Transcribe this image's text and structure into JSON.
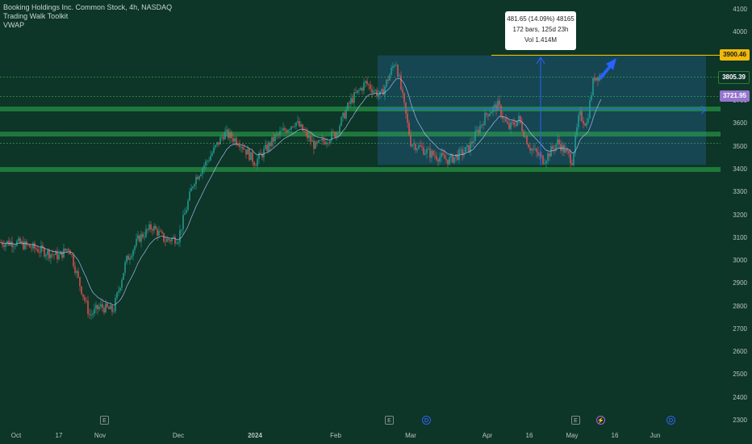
{
  "legend": {
    "symbol": "Booking Holdings Inc. Common Stock, 4h, NASDAQ",
    "indicator1": "Trading Walk Toolkit",
    "indicator2": "VWAP"
  },
  "measure_tooltip": {
    "line1": "481.65 (14.09%) 48165",
    "line2": "172 bars, 125d 23h",
    "line3": "Vol 1.414M"
  },
  "price_labels": [
    {
      "text": "3900.46",
      "price": 3900.46,
      "bg": "#f0b90b",
      "fg": "#1a1a1a"
    },
    {
      "text": "3805.39",
      "price": 3805.39,
      "bg": "#0d3528",
      "fg": "#ffffff",
      "border": "#2e7d32"
    },
    {
      "text": "3721.95",
      "price": 3721.95,
      "bg": "#9575cd",
      "fg": "#ffffff"
    }
  ],
  "chart_data": {
    "type": "candlestick",
    "y_ticks": [
      2300,
      2400,
      2500,
      2600,
      2700,
      2800,
      2900,
      3000,
      3100,
      3200,
      3300,
      3400,
      3500,
      3600,
      3700,
      3800,
      3900,
      4000,
      4100
    ],
    "x_ticks": [
      "Oct",
      "17",
      "Nov",
      "Dec",
      "2024",
      "Feb",
      "Mar",
      "Apr",
      "16",
      "May",
      "16",
      "Jun"
    ],
    "colors": {
      "up": "#26a69a",
      "down": "#ef5350",
      "ma": "#b8c4ff",
      "zone": "#2fae4a",
      "box": "#1e5b85",
      "arrow": "#2962ff",
      "target_line": "#f0b90b"
    },
    "close_path": [
      [
        "Oct",
        3080
      ],
      [
        "Oct",
        3060
      ],
      [
        "Oct",
        3040
      ],
      [
        "17",
        3020
      ],
      [
        "17",
        3060
      ],
      [
        "17",
        2900
      ],
      [
        "17",
        2760
      ],
      [
        "Nov",
        2800
      ],
      [
        "Nov",
        2780
      ],
      [
        "Nov",
        3000
      ],
      [
        "Nov",
        3100
      ],
      [
        "Nov",
        3150
      ],
      [
        "Nov",
        3090
      ],
      [
        "Dec",
        3100
      ],
      [
        "Dec",
        3350
      ],
      [
        "Dec",
        3450
      ],
      [
        "Dec",
        3560
      ],
      [
        "Dec",
        3520
      ],
      [
        "2024",
        3430
      ],
      [
        "2024",
        3540
      ],
      [
        "2024",
        3610
      ],
      [
        "2024",
        3500
      ],
      [
        "Feb",
        3560
      ],
      [
        "Feb",
        3700
      ],
      [
        "Feb",
        3780
      ],
      [
        "Feb",
        3720
      ],
      [
        "Feb",
        3880
      ],
      [
        "Mar",
        3520
      ],
      [
        "Mar",
        3470
      ],
      [
        "Mar",
        3440
      ],
      [
        "Mar",
        3490
      ],
      [
        "Apr",
        3650
      ],
      [
        "Apr",
        3680
      ],
      [
        "Apr",
        3580
      ],
      [
        "Apr",
        3620
      ],
      [
        "16",
        3500
      ],
      [
        "16",
        3440
      ],
      [
        "16",
        3520
      ],
      [
        "May",
        3440
      ],
      [
        "May",
        3640
      ],
      [
        "May",
        3600
      ],
      [
        "May",
        3805
      ]
    ],
    "support_zones": [
      3400,
      3555,
      3665
    ],
    "dotted_levels": [
      3805,
      3720,
      3515
    ],
    "box_range": {
      "price_low": 3420,
      "price_high": 3900
    },
    "target_price": 3900.46
  }
}
